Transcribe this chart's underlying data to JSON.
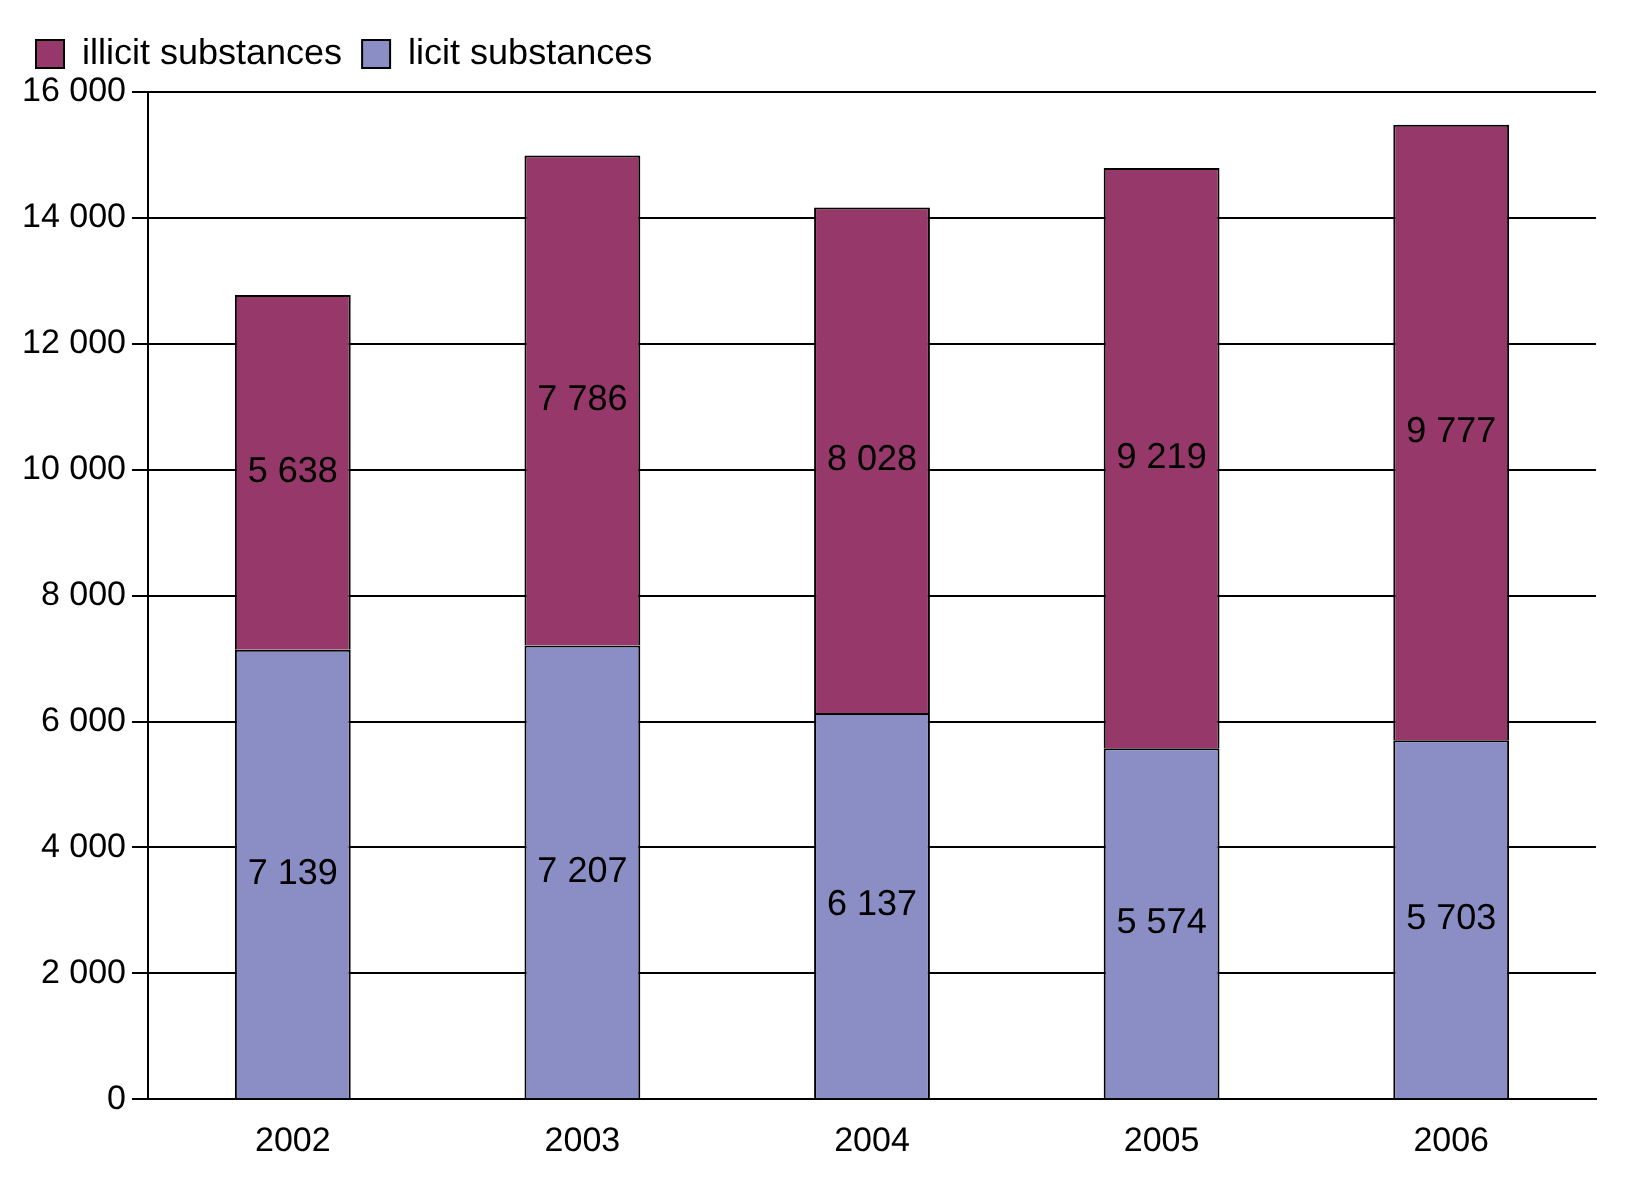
{
  "chart_data": {
    "type": "bar",
    "stacked": true,
    "categories": [
      "2002",
      "2003",
      "2004",
      "2005",
      "2006"
    ],
    "series": [
      {
        "name": "licit substances",
        "color": "#8b8ec4",
        "values": [
          7139,
          7207,
          6137,
          5574,
          5703
        ],
        "value_labels": [
          "7 139",
          "7 207",
          "6 137",
          "5 574",
          "5 703"
        ]
      },
      {
        "name": "illicit substances",
        "color": "#96386a",
        "values": [
          5638,
          7786,
          8028,
          9219,
          9777
        ],
        "value_labels": [
          "5 638",
          "7 786",
          "8 028",
          "9 219",
          "9 777"
        ]
      }
    ],
    "ylim": [
      0,
      16000
    ],
    "yticks": [
      {
        "value": 0,
        "label": "0"
      },
      {
        "value": 2000,
        "label": "2 000"
      },
      {
        "value": 4000,
        "label": "4 000"
      },
      {
        "value": 6000,
        "label": "6 000"
      },
      {
        "value": 8000,
        "label": "8 000"
      },
      {
        "value": 10000,
        "label": "10 000"
      },
      {
        "value": 12000,
        "label": "12 000"
      },
      {
        "value": 14000,
        "label": "14 000"
      },
      {
        "value": 16000,
        "label": "16 000"
      }
    ],
    "grid": "y",
    "legend": "top left"
  }
}
